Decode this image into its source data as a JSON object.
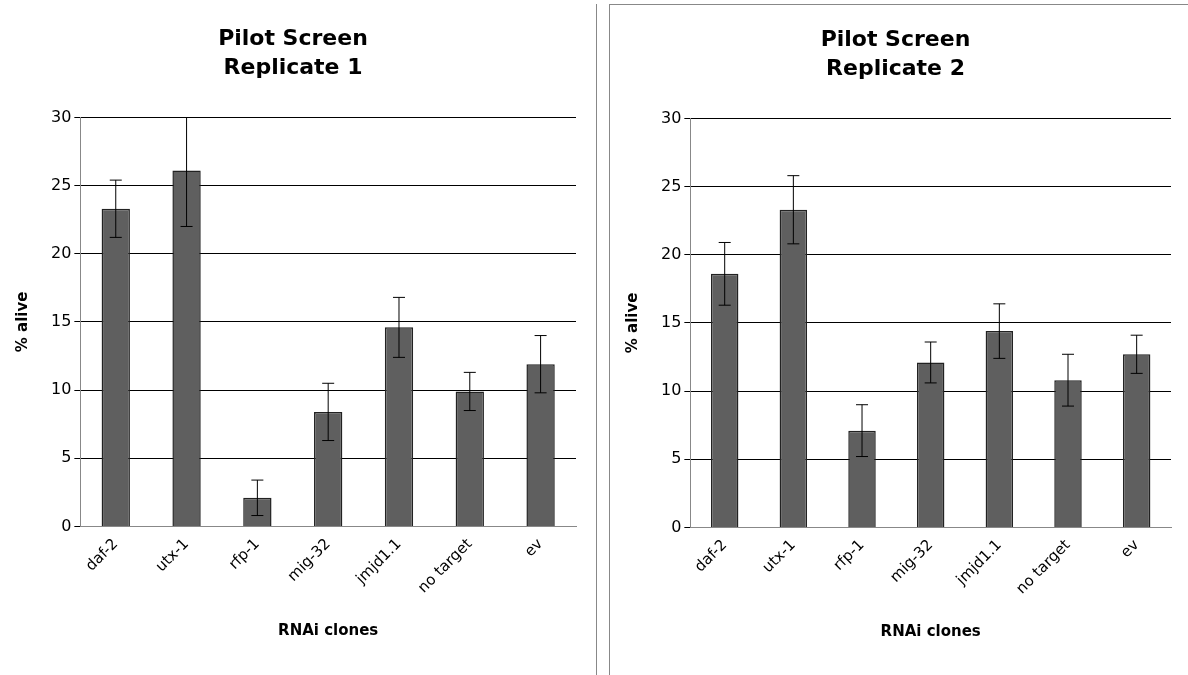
{
  "chart_data": [
    {
      "type": "bar",
      "title": "Pilot Screen\nReplicate 1",
      "xlabel": "RNAi clones",
      "ylabel": "% alive",
      "categories": [
        "daf-2",
        "utx-1",
        "rfp-1",
        "mig-32",
        "jmjd1.1",
        "no target",
        "ev"
      ],
      "values": [
        23.3,
        26.1,
        2.1,
        8.4,
        14.6,
        9.9,
        11.9
      ],
      "errors": [
        2.1,
        [
          22.0,
          30
        ],
        1.3,
        2.1,
        2.2,
        1.4,
        2.1
      ],
      "color": "#5f5f5f",
      "ylim": [
        0,
        30
      ],
      "yticks": [
        0,
        5,
        10,
        15,
        20,
        25,
        30
      ],
      "grid": "y",
      "legend": false
    },
    {
      "type": "bar",
      "title": "Pilot Screen\nReplicate 2",
      "xlabel": "RNAi clones",
      "ylabel": "% alive",
      "categories": [
        "daf-2",
        "utx-1",
        "rfp-1",
        "mig-32",
        "jmjd1.1",
        "no target",
        "ev"
      ],
      "values": [
        18.6,
        23.3,
        7.1,
        12.1,
        14.4,
        10.8,
        12.7
      ],
      "errors": [
        2.3,
        2.5,
        1.9,
        1.5,
        2.0,
        1.9,
        1.4
      ],
      "color": "#5f5f5f",
      "ylim": [
        0,
        30
      ],
      "yticks": [
        0,
        5,
        10,
        15,
        20,
        25,
        30
      ],
      "grid": "y",
      "legend": false
    }
  ]
}
